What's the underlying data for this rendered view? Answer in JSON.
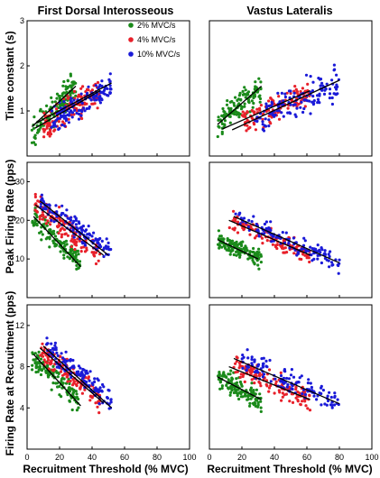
{
  "column_titles": [
    "First Dorsal Interosseous",
    "Vastus Lateralis"
  ],
  "row_ylabels": [
    "Time constant (s)",
    "Peak Firing Rate (pps)",
    "Firing Rate at Recruitment (pps)"
  ],
  "xlabel": "Recruitment Threshold (% MVC)",
  "legend": [
    {
      "label": "2% MVC/s",
      "color": "#1a8a1a"
    },
    {
      "label": "4% MVC/s",
      "color": "#e8202a"
    },
    {
      "label": "10% MVC/s",
      "color": "#1a1ad8"
    }
  ],
  "chart_data": [
    {
      "type": "scatter",
      "panel": "FDI time constant",
      "xlim": [
        0,
        100
      ],
      "ylim": [
        0,
        3
      ],
      "yticks": [
        "1",
        "2",
        "3"
      ],
      "xticks": [],
      "series": [
        {
          "name": "2% MVC/s",
          "color": "#1a8a1a",
          "x_range": [
            3,
            30
          ],
          "y_line": [
            0.6,
            1.5
          ],
          "spread": 0.28,
          "fit": [
            [
              3,
              0.65
            ],
            [
              30,
              1.55
            ]
          ]
        },
        {
          "name": "4% MVC/s",
          "color": "#e8202a",
          "x_range": [
            10,
            45
          ],
          "y_line": [
            0.65,
            1.45
          ],
          "spread": 0.25,
          "fit": [
            [
              5,
              0.62
            ],
            [
              45,
              1.45
            ]
          ]
        },
        {
          "name": "10% MVC/s",
          "color": "#1a1ad8",
          "x_range": [
            15,
            52
          ],
          "y_line": [
            0.75,
            1.55
          ],
          "spread": 0.22,
          "fit": [
            [
              5,
              0.72
            ],
            [
              52,
              1.62
            ]
          ]
        }
      ]
    },
    {
      "type": "scatter",
      "panel": "VL time constant",
      "xlim": [
        0,
        100
      ],
      "ylim": [
        0,
        3
      ],
      "xticks": [],
      "series": [
        {
          "name": "2% MVC/s",
          "color": "#1a8a1a",
          "x_range": [
            5,
            32
          ],
          "y_line": [
            0.7,
            1.5
          ],
          "spread": 0.25,
          "fit": [
            [
              5,
              0.7
            ],
            [
              32,
              1.55
            ]
          ]
        },
        {
          "name": "4% MVC/s",
          "color": "#e8202a",
          "x_range": [
            20,
            62
          ],
          "y_line": [
            0.75,
            1.4
          ],
          "spread": 0.25,
          "fit": [
            [
              8,
              0.6
            ],
            [
              62,
              1.45
            ]
          ]
        },
        {
          "name": "10% MVC/s",
          "color": "#1a1ad8",
          "x_range": [
            28,
            80
          ],
          "y_line": [
            0.8,
            1.65
          ],
          "spread": 0.3,
          "fit": [
            [
              14,
              0.58
            ],
            [
              80,
              1.68
            ]
          ]
        }
      ]
    },
    {
      "type": "scatter",
      "panel": "FDI peak firing rate",
      "xlim": [
        0,
        100
      ],
      "ylim": [
        0,
        35
      ],
      "yticks": [
        "10",
        "20",
        "30"
      ],
      "xticks": [],
      "series": [
        {
          "name": "2% MVC/s",
          "color": "#1a8a1a",
          "x_range": [
            3,
            33
          ],
          "y_line": [
            21,
            9
          ],
          "spread": 2.5,
          "fit": [
            [
              4,
              21
            ],
            [
              33,
              8
            ]
          ]
        },
        {
          "name": "4% MVC/s",
          "color": "#e8202a",
          "x_range": [
            5,
            45
          ],
          "y_line": [
            24,
            11
          ],
          "spread": 2.8,
          "fit": [
            [
              5,
              24
            ],
            [
              47,
              11
            ]
          ]
        },
        {
          "name": "10% MVC/s",
          "color": "#1a1ad8",
          "x_range": [
            8,
            52
          ],
          "y_line": [
            24,
            12
          ],
          "spread": 2.3,
          "fit": [
            [
              8,
              25
            ],
            [
              50,
              11
            ]
          ]
        }
      ]
    },
    {
      "type": "scatter",
      "panel": "VL peak firing rate",
      "xlim": [
        0,
        100
      ],
      "ylim": [
        0,
        35
      ],
      "xticks": [],
      "series": [
        {
          "name": "2% MVC/s",
          "color": "#1a8a1a",
          "x_range": [
            5,
            32
          ],
          "y_line": [
            15,
            10
          ],
          "spread": 1.8,
          "fit": [
            [
              5,
              15
            ],
            [
              30,
              10
            ]
          ]
        },
        {
          "name": "4% MVC/s",
          "color": "#e8202a",
          "x_range": [
            12,
            62
          ],
          "y_line": [
            20,
            11
          ],
          "spread": 2.0,
          "fit": [
            [
              12,
              20
            ],
            [
              62,
              11
            ]
          ]
        },
        {
          "name": "10% MVC/s",
          "color": "#1a1ad8",
          "x_range": [
            15,
            80
          ],
          "y_line": [
            21,
            9
          ],
          "spread": 2.2,
          "fit": [
            [
              15,
              21
            ],
            [
              80,
              9
            ]
          ]
        }
      ]
    },
    {
      "type": "scatter",
      "panel": "FDI firing rate at recruitment",
      "xlim": [
        0,
        100
      ],
      "ylim": [
        0,
        14
      ],
      "yticks": [
        "4",
        "8",
        "12"
      ],
      "xticks": [
        "0",
        "20",
        "40",
        "60",
        "80",
        "100"
      ],
      "series": [
        {
          "name": "2% MVC/s",
          "color": "#1a8a1a",
          "x_range": [
            3,
            33
          ],
          "y_line": [
            9,
            4.5
          ],
          "spread": 1.0,
          "fit": [
            [
              4,
              9.2
            ],
            [
              33,
              4.2
            ]
          ]
        },
        {
          "name": "4% MVC/s",
          "color": "#e8202a",
          "x_range": [
            8,
            45
          ],
          "y_line": [
            9.5,
            5
          ],
          "spread": 1.0,
          "fit": [
            [
              8,
              9.8
            ],
            [
              47,
              4.5
            ]
          ]
        },
        {
          "name": "10% MVC/s",
          "color": "#1a1ad8",
          "x_range": [
            12,
            52
          ],
          "y_line": [
            10,
            4.5
          ],
          "spread": 1.0,
          "fit": [
            [
              10,
              10
            ],
            [
              52,
              4
            ]
          ]
        }
      ]
    },
    {
      "type": "scatter",
      "panel": "VL firing rate at recruitment",
      "xlim": [
        0,
        100
      ],
      "ylim": [
        0,
        14
      ],
      "xticks": [
        "0",
        "20",
        "40",
        "60",
        "80",
        "100"
      ],
      "series": [
        {
          "name": "2% MVC/s",
          "color": "#1a8a1a",
          "x_range": [
            5,
            32
          ],
          "y_line": [
            7,
            4.8
          ],
          "spread": 0.9,
          "fit": [
            [
              5,
              7
            ],
            [
              32,
              4.8
            ]
          ]
        },
        {
          "name": "4% MVC/s",
          "color": "#e8202a",
          "x_range": [
            15,
            62
          ],
          "y_line": [
            8,
            4.8
          ],
          "spread": 0.9,
          "fit": [
            [
              12,
              8
            ],
            [
              62,
              4.8
            ]
          ]
        },
        {
          "name": "10% MVC/s",
          "color": "#1a1ad8",
          "x_range": [
            20,
            80
          ],
          "y_line": [
            8.5,
            4.5
          ],
          "spread": 1.0,
          "fit": [
            [
              15,
              8.8
            ],
            [
              80,
              4.4
            ]
          ]
        }
      ]
    }
  ]
}
